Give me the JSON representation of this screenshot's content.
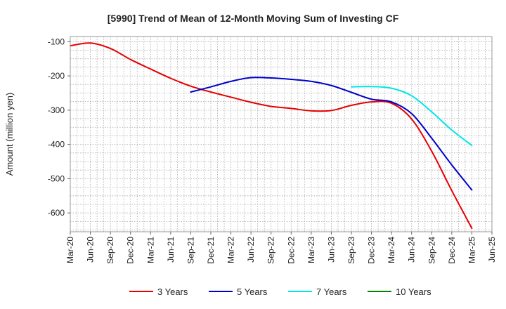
{
  "chart_data": {
    "type": "line",
    "title": "[5990]  Trend of Mean of 12-Month Moving Sum of Investing CF",
    "ylabel": "Amount (million yen)",
    "xlabel": "",
    "ylim": [
      -655,
      -85
    ],
    "yticks": [
      -100,
      -200,
      -300,
      -400,
      -500,
      -600
    ],
    "ytick_labels": [
      "-100",
      "-200",
      "-300",
      "-400",
      "-500",
      "-600"
    ],
    "x_tick_labels": [
      "Mar-20",
      "Jun-20",
      "Sep-20",
      "Dec-20",
      "Mar-21",
      "Jun-21",
      "Sep-21",
      "Dec-21",
      "Mar-22",
      "Jun-22",
      "Sep-22",
      "Dec-22",
      "Mar-23",
      "Jun-23",
      "Sep-23",
      "Dec-23",
      "Mar-24",
      "Jun-24",
      "Sep-24",
      "Dec-24",
      "Mar-25",
      "Jun-25"
    ],
    "grid": true,
    "legend_position": "bottom",
    "series": [
      {
        "name": "3 Years",
        "color": "#e60000",
        "points": [
          [
            0,
            -112
          ],
          [
            1,
            -104
          ],
          [
            2,
            -120
          ],
          [
            3,
            -152
          ],
          [
            4,
            -180
          ],
          [
            5,
            -207
          ],
          [
            6,
            -230
          ],
          [
            7,
            -247
          ],
          [
            8,
            -262
          ],
          [
            9,
            -277
          ],
          [
            10,
            -289
          ],
          [
            11,
            -295
          ],
          [
            12,
            -302
          ],
          [
            13,
            -301
          ],
          [
            14,
            -286
          ],
          [
            15,
            -276
          ],
          [
            16,
            -280
          ],
          [
            17,
            -326
          ],
          [
            18,
            -420
          ],
          [
            19,
            -535
          ],
          [
            20,
            -645
          ]
        ]
      },
      {
        "name": "5 Years",
        "color": "#0000cc",
        "points": [
          [
            6,
            -247
          ],
          [
            7,
            -232
          ],
          [
            8,
            -216
          ],
          [
            9,
            -205
          ],
          [
            10,
            -206
          ],
          [
            11,
            -210
          ],
          [
            12,
            -216
          ],
          [
            13,
            -228
          ],
          [
            14,
            -248
          ],
          [
            15,
            -268
          ],
          [
            16,
            -276
          ],
          [
            17,
            -310
          ],
          [
            18,
            -382
          ],
          [
            19,
            -460
          ],
          [
            20,
            -533
          ]
        ]
      },
      {
        "name": "7 Years",
        "color": "#00e6e6",
        "points": [
          [
            14,
            -232
          ],
          [
            15,
            -231
          ],
          [
            16,
            -236
          ],
          [
            17,
            -258
          ],
          [
            18,
            -305
          ],
          [
            19,
            -358
          ],
          [
            20,
            -403
          ]
        ]
      },
      {
        "name": "10 Years",
        "color": "#008000",
        "points": []
      }
    ]
  }
}
